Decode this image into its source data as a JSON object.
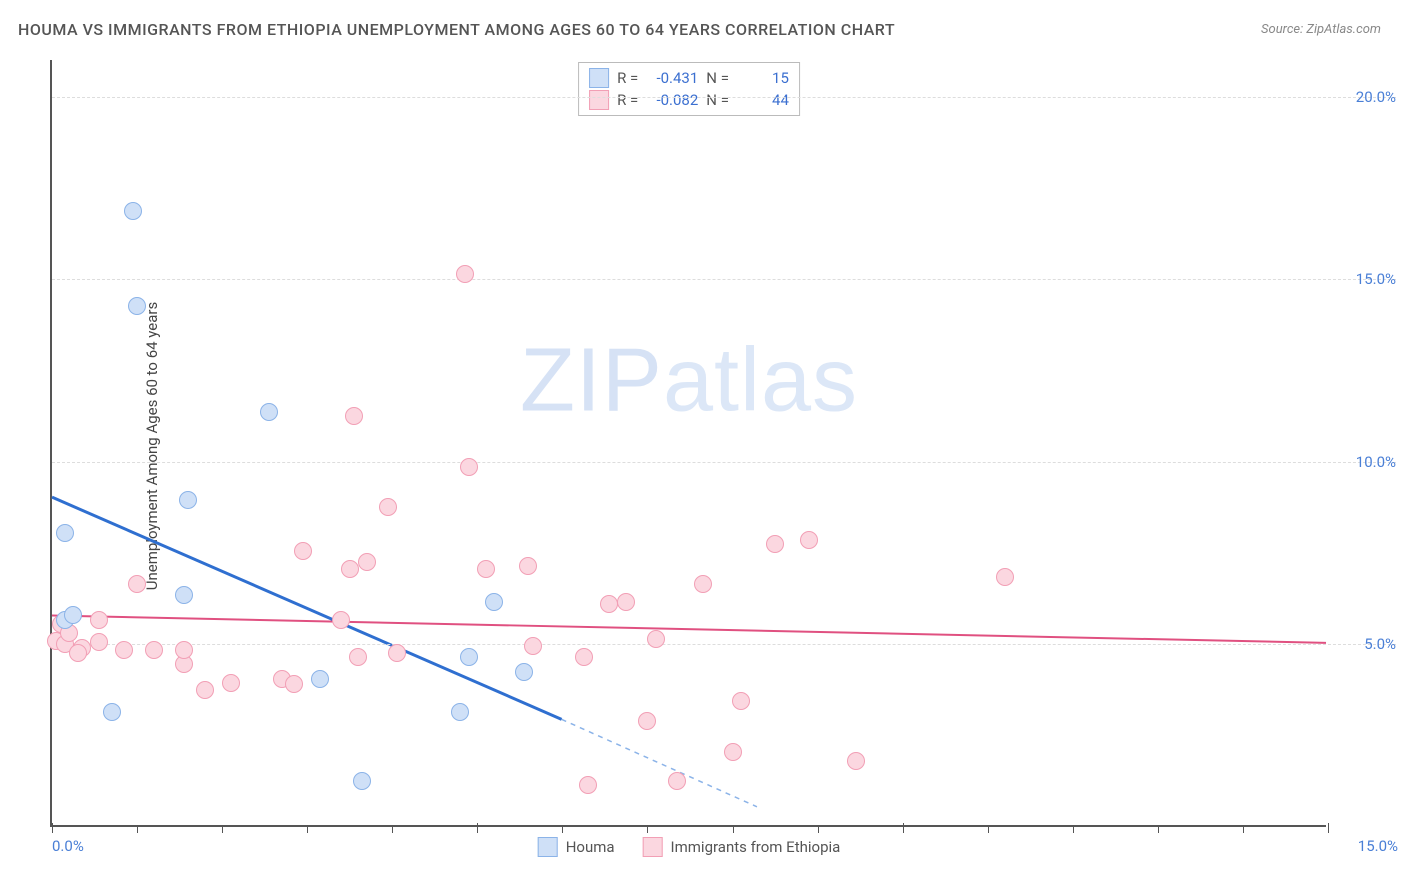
{
  "title": "HOUMA VS IMMIGRANTS FROM ETHIOPIA UNEMPLOYMENT AMONG AGES 60 TO 64 YEARS CORRELATION CHART",
  "source": "Source: ZipAtlas.com",
  "y_axis_label": "Unemployment Among Ages 60 to 64 years",
  "watermark_bold": "ZIP",
  "watermark_thin": "atlas",
  "chart": {
    "type": "scatter",
    "xlim": [
      0,
      15
    ],
    "ylim": [
      0,
      21
    ],
    "x_ticks": [
      0,
      5,
      10,
      15
    ],
    "x_tick_labels": [
      "0.0%",
      "",
      "",
      "15.0%"
    ],
    "x_minor_ticks": [
      1,
      2,
      3,
      4,
      6,
      7,
      8,
      9,
      11,
      12,
      13,
      14
    ],
    "y_ticks": [
      5,
      10,
      15,
      20
    ],
    "y_tick_labels": [
      "5.0%",
      "10.0%",
      "15.0%",
      "20.0%"
    ],
    "grid_color": "#dddddd",
    "background_color": "#ffffff",
    "axis_color": "#555555",
    "marker_radius": 9,
    "marker_stroke_width": 1,
    "series": [
      {
        "name": "Houma",
        "label": "Houma",
        "fill": "#cfe0f7",
        "stroke": "#8bb3e8",
        "trend_color": "#2f6fd0",
        "trend_width": 3,
        "R": "-0.431",
        "N": "15",
        "trend": {
          "x1": 0,
          "y1": 9.0,
          "x2": 6.0,
          "y2": 2.9,
          "ext_x2": 8.3,
          "ext_y2": 0.5
        },
        "points": [
          {
            "x": 0.15,
            "y": 5.6
          },
          {
            "x": 0.15,
            "y": 8.0
          },
          {
            "x": 0.25,
            "y": 5.75
          },
          {
            "x": 0.7,
            "y": 3.1
          },
          {
            "x": 0.95,
            "y": 16.8
          },
          {
            "x": 1.0,
            "y": 14.2
          },
          {
            "x": 1.55,
            "y": 6.3
          },
          {
            "x": 1.6,
            "y": 8.9
          },
          {
            "x": 2.55,
            "y": 11.3
          },
          {
            "x": 3.15,
            "y": 4.0
          },
          {
            "x": 3.65,
            "y": 1.2
          },
          {
            "x": 4.8,
            "y": 3.1
          },
          {
            "x": 4.9,
            "y": 4.6
          },
          {
            "x": 5.2,
            "y": 6.1
          },
          {
            "x": 5.55,
            "y": 4.2
          }
        ]
      },
      {
        "name": "Immigrants from Ethiopia",
        "label": "Immigrants from Ethiopia",
        "fill": "#fbd7e0",
        "stroke": "#f29fb5",
        "trend_color": "#e05080",
        "trend_width": 2,
        "R": "-0.082",
        "N": "44",
        "trend": {
          "x1": 0,
          "y1": 5.75,
          "x2": 15,
          "y2": 5.0
        },
        "points": [
          {
            "x": 0.05,
            "y": 5.05
          },
          {
            "x": 0.1,
            "y": 5.5
          },
          {
            "x": 0.15,
            "y": 4.95
          },
          {
            "x": 0.2,
            "y": 5.25
          },
          {
            "x": 0.35,
            "y": 4.85
          },
          {
            "x": 0.55,
            "y": 5.0
          },
          {
            "x": 0.55,
            "y": 5.6
          },
          {
            "x": 0.85,
            "y": 4.8
          },
          {
            "x": 1.0,
            "y": 6.6
          },
          {
            "x": 1.2,
            "y": 4.8
          },
          {
            "x": 1.55,
            "y": 4.4
          },
          {
            "x": 1.55,
            "y": 4.8
          },
          {
            "x": 1.8,
            "y": 3.7
          },
          {
            "x": 2.1,
            "y": 3.9
          },
          {
            "x": 2.7,
            "y": 4.0
          },
          {
            "x": 2.85,
            "y": 3.85
          },
          {
            "x": 2.95,
            "y": 7.5
          },
          {
            "x": 3.4,
            "y": 5.6
          },
          {
            "x": 3.5,
            "y": 7.0
          },
          {
            "x": 3.55,
            "y": 11.2
          },
          {
            "x": 3.6,
            "y": 4.6
          },
          {
            "x": 3.7,
            "y": 7.2
          },
          {
            "x": 3.95,
            "y": 8.7
          },
          {
            "x": 4.05,
            "y": 4.7
          },
          {
            "x": 4.85,
            "y": 15.1
          },
          {
            "x": 4.9,
            "y": 9.8
          },
          {
            "x": 5.1,
            "y": 7.0
          },
          {
            "x": 5.6,
            "y": 7.1
          },
          {
            "x": 5.65,
            "y": 4.9
          },
          {
            "x": 6.25,
            "y": 4.6
          },
          {
            "x": 6.3,
            "y": 1.1
          },
          {
            "x": 6.55,
            "y": 6.05
          },
          {
            "x": 6.75,
            "y": 6.1
          },
          {
            "x": 7.0,
            "y": 2.85
          },
          {
            "x": 7.1,
            "y": 5.1
          },
          {
            "x": 7.35,
            "y": 1.2
          },
          {
            "x": 7.65,
            "y": 6.6
          },
          {
            "x": 8.1,
            "y": 3.4
          },
          {
            "x": 8.5,
            "y": 7.7
          },
          {
            "x": 8.9,
            "y": 7.8
          },
          {
            "x": 9.45,
            "y": 1.75
          },
          {
            "x": 11.2,
            "y": 6.8
          },
          {
            "x": 0.3,
            "y": 4.7
          },
          {
            "x": 8.0,
            "y": 2.0
          }
        ]
      }
    ]
  },
  "legend_top": {
    "R_label": "R =",
    "N_label": "N ="
  }
}
